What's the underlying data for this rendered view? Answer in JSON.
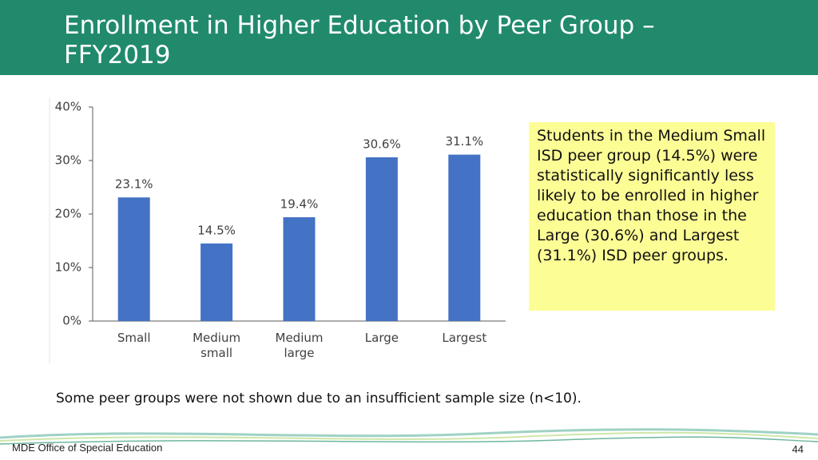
{
  "chart_data": {
    "type": "bar",
    "title": "Enrollment in Higher Education by Peer Group – FFY2019",
    "categories": [
      "Small",
      "Medium small",
      "Medium large",
      "Large",
      "Largest"
    ],
    "values": [
      23.1,
      14.5,
      19.4,
      30.6,
      31.1
    ],
    "value_labels": [
      "23.1%",
      "14.5%",
      "19.4%",
      "30.6%",
      "31.1%"
    ],
    "color": "#4472c4",
    "ylim": [
      0,
      40
    ],
    "yticks": [
      {
        "value": 0,
        "label": "0%"
      },
      {
        "value": 10,
        "label": "10%"
      },
      {
        "value": 20,
        "label": "20%"
      },
      {
        "value": 30,
        "label": "30%"
      },
      {
        "value": 40,
        "label": "40%"
      }
    ],
    "grid": false,
    "annotation": "Students in the Medium Small ISD peer group (14.5%) were statistically significantly less likely to be enrolled in higher education than those in the Large (30.6%) and Largest (31.1%) ISD peer groups.",
    "note": "Some peer groups were not shown due to an insufficient sample size (n<10)."
  },
  "footer": {
    "left": "MDE Office of Special Education",
    "page": 44
  }
}
